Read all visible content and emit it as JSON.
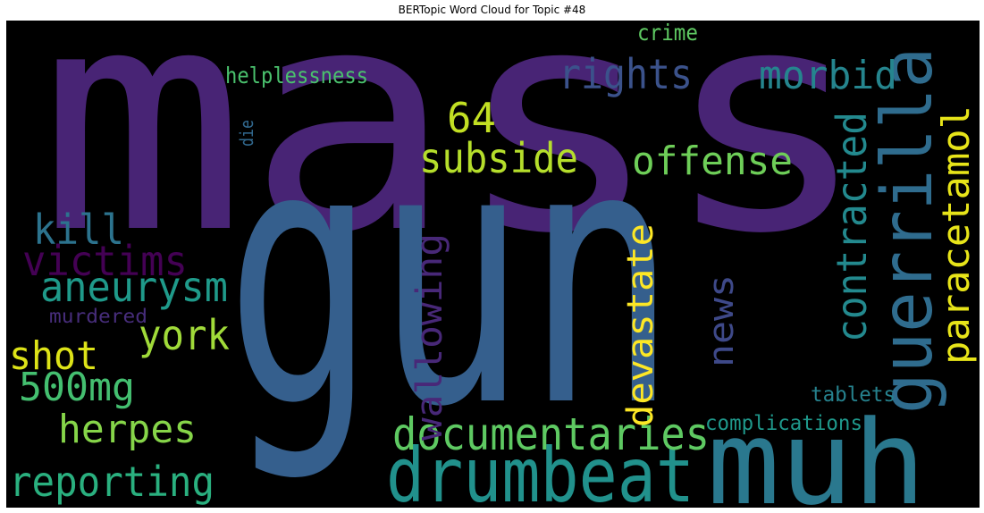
{
  "chart_data": {
    "type": "wordcloud",
    "title": "BERTopic Word Cloud for Topic #48",
    "background": "#000000",
    "colormap": "viridis",
    "words": [
      {
        "text": "mass",
        "color": "#482475",
        "orientation": "horizontal"
      },
      {
        "text": "gun",
        "color": "#355f8d",
        "orientation": "horizontal"
      },
      {
        "text": "muh",
        "color": "#2a788e",
        "orientation": "horizontal"
      },
      {
        "text": "drumbeat",
        "color": "#21918c",
        "orientation": "horizontal"
      },
      {
        "text": "guerrilla",
        "color": "#2f6c8e",
        "orientation": "vertical"
      },
      {
        "text": "documentaries",
        "color": "#5ec962",
        "orientation": "horizontal"
      },
      {
        "text": "rights",
        "color": "#3b528b",
        "orientation": "horizontal"
      },
      {
        "text": "morbid",
        "color": "#25858e",
        "orientation": "horizontal"
      },
      {
        "text": "subside",
        "color": "#b5de2b",
        "orientation": "horizontal"
      },
      {
        "text": "offense",
        "color": "#6ece58",
        "orientation": "horizontal"
      },
      {
        "text": "64",
        "color": "#c2df23",
        "orientation": "horizontal"
      },
      {
        "text": "contracted",
        "color": "#23898e",
        "orientation": "vertical"
      },
      {
        "text": "paracetamol",
        "color": "#e7e419",
        "orientation": "vertical"
      },
      {
        "text": "kill",
        "color": "#2c738e",
        "orientation": "horizontal"
      },
      {
        "text": "victims",
        "color": "#440154",
        "orientation": "horizontal"
      },
      {
        "text": "aneurysm",
        "color": "#1f9a8a",
        "orientation": "horizontal"
      },
      {
        "text": "york",
        "color": "#a0da39",
        "orientation": "horizontal"
      },
      {
        "text": "shot",
        "color": "#dde318",
        "orientation": "horizontal"
      },
      {
        "text": "500mg",
        "color": "#44bf70",
        "orientation": "horizontal"
      },
      {
        "text": "herpes",
        "color": "#86d549",
        "orientation": "horizontal"
      },
      {
        "text": "reporting",
        "color": "#2ab07f",
        "orientation": "horizontal"
      },
      {
        "text": "wallowing",
        "color": "#482878",
        "orientation": "vertical"
      },
      {
        "text": "devastate",
        "color": "#fde725",
        "orientation": "vertical"
      },
      {
        "text": "news",
        "color": "#3e4989",
        "orientation": "vertical"
      },
      {
        "text": "helplessness",
        "color": "#4ac16d",
        "orientation": "horizontal"
      },
      {
        "text": "crime",
        "color": "#5ec962",
        "orientation": "horizontal"
      },
      {
        "text": "die",
        "color": "#31688e",
        "orientation": "vertical"
      },
      {
        "text": "murdered",
        "color": "#472d7b",
        "orientation": "horizontal"
      },
      {
        "text": "tablets",
        "color": "#26828e",
        "orientation": "horizontal"
      },
      {
        "text": "complications",
        "color": "#1f988b",
        "orientation": "horizontal"
      }
    ]
  }
}
